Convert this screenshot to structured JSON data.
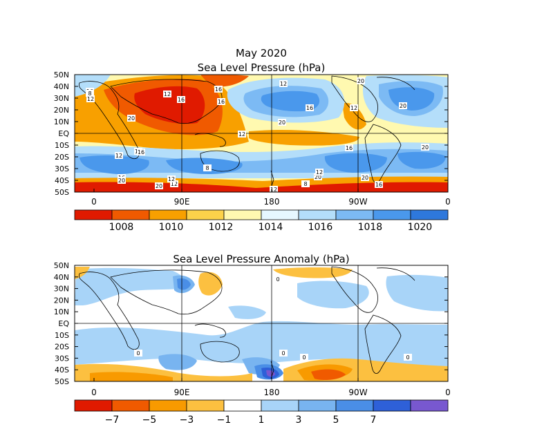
{
  "chart_data": [
    {
      "type": "heatmap",
      "title": "May 2020",
      "subtitle": "Sea Level Pressure (hPa)",
      "lat_labels": [
        "50N",
        "40N",
        "30N",
        "20N",
        "10N",
        "EQ",
        "10S",
        "20S",
        "30S",
        "40S",
        "50S"
      ],
      "lon_labels": [
        "0",
        "90E",
        "180",
        "90W",
        "0"
      ],
      "contour_labels": [
        "16",
        "12",
        "16",
        "20",
        "12",
        "16",
        "20",
        "12",
        "12",
        "8",
        "16",
        "12",
        "20",
        "12",
        "16",
        "12",
        "16",
        "20",
        "20",
        "16",
        "20",
        "20",
        "20",
        "12",
        "12",
        "12",
        "8",
        "20",
        "16",
        "16",
        "8",
        "12"
      ],
      "colorbar": {
        "colors": [
          "#e01a00",
          "#f05a00",
          "#f8a000",
          "#fcd24a",
          "#fff9b0",
          "#e6f8ff",
          "#b4defa",
          "#7cbaf4",
          "#4a98ec",
          "#2e78dc"
        ],
        "labels": [
          "1008",
          "1010",
          "1012",
          "1014",
          "1016",
          "1018",
          "1020"
        ]
      }
    },
    {
      "type": "heatmap",
      "title": "Sea Level Pressure Anomaly (hPa)",
      "lat_labels": [
        "50N",
        "40N",
        "30N",
        "20N",
        "10N",
        "EQ",
        "10S",
        "20S",
        "30S",
        "40S",
        "50S"
      ],
      "lon_labels": [
        "0",
        "90E",
        "180",
        "90W",
        "0"
      ],
      "contour_labels": [
        "0",
        "0",
        "0",
        "0",
        "0"
      ],
      "colorbar": {
        "colors": [
          "#e01a00",
          "#f05a00",
          "#f89a00",
          "#fcc040",
          "#ffffff",
          "#a8d4f8",
          "#78b4f0",
          "#4a8ee6",
          "#2e60d8",
          "#7858d0"
        ],
        "labels": [
          "−7",
          "−5",
          "−3",
          "−1",
          "1",
          "3",
          "5",
          "7"
        ]
      }
    }
  ]
}
